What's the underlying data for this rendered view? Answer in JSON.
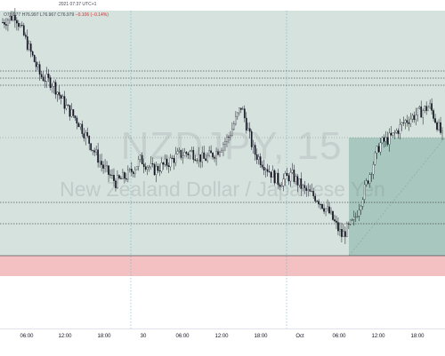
{
  "header": {
    "timestamp": "2021 07:37 UTC+1"
  },
  "ohlc": {
    "o_label": "O",
    "o_value": "76.977",
    "h_label": "H",
    "h_value": "76.997",
    "l_label": "L",
    "l_value": "76.967",
    "c_label": "C",
    "c_value": "76.979",
    "change": "−0.106 (−0.14%)"
  },
  "watermark": {
    "symbol": "NZDJPY, 15",
    "description": "New Zealand Dollar / Japanese Yen"
  },
  "time_axis": {
    "labels": [
      "06:00",
      "12:00",
      "18:00",
      "30",
      "06:00",
      "12:00",
      "18:00",
      "Oct",
      "06:00",
      "12:00",
      "18:00"
    ]
  },
  "colors": {
    "background_zone": "#d6e2dd",
    "position_zone": "#a8c7be",
    "stop_zone": "#f4c1c3",
    "candle": "#131722",
    "horizontal_line": "#131722",
    "vertical_line": "#5ab6d6"
  },
  "chart_data": {
    "type": "candlestick",
    "symbol": "NZDJPY",
    "interval": "15",
    "x": [
      "06:00",
      "12:00",
      "18:00",
      "30",
      "06:00",
      "12:00",
      "18:00",
      "Oct",
      "06:00",
      "12:00",
      "18:00"
    ],
    "close_path": [
      77.35,
      77.4,
      77.2,
      77.0,
      76.95,
      76.8,
      76.7,
      76.55,
      76.4,
      76.3,
      76.35,
      76.45,
      76.38,
      76.42,
      76.48,
      76.5,
      76.45,
      76.5,
      76.6,
      76.8,
      76.5,
      76.4,
      76.3,
      76.35,
      76.25,
      76.2,
      76.1,
      75.95,
      76.05,
      76.3,
      76.55,
      76.6,
      76.7,
      76.75,
      76.8,
      76.6
    ],
    "horizontal_levels_count": 7,
    "grid": false,
    "legend": "none"
  }
}
